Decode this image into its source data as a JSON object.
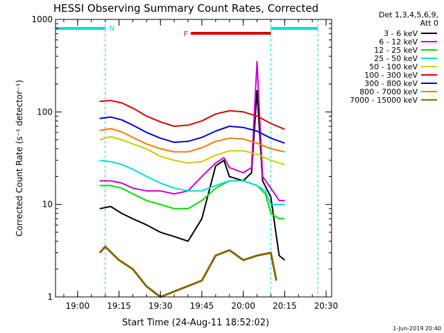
{
  "chart_data": {
    "type": "line",
    "title": "HESSI Observing Summary Count Rates, Corrected",
    "xlabel": "Start Time (24-Aug-11 18:52:02)",
    "ylabel": "Corrected Count Rate (s⁻¹ detector⁻¹)",
    "y_scale": "log",
    "ylim": [
      1,
      1000
    ],
    "xlim": [
      "18:52",
      "20:32"
    ],
    "x_ticks": [
      "19:00",
      "19:15",
      "19:30",
      "19:45",
      "20:00",
      "20:15",
      "20:30"
    ],
    "y_ticks": [
      "1",
      "10",
      "100",
      "1000"
    ],
    "legend_header": [
      "Det 1,3,4,5,6,9,",
      "Att 0"
    ],
    "legend_position": "right",
    "date_stamp": "1-Jun-2019 20:40",
    "series": [
      {
        "name": "3 - 6 keV",
        "color": "#000000",
        "points": [
          [
            "19:08",
            9
          ],
          [
            "19:12",
            9.5
          ],
          [
            "19:16",
            8
          ],
          [
            "19:20",
            7
          ],
          [
            "19:25",
            6
          ],
          [
            "19:30",
            5
          ],
          [
            "19:35",
            4.5
          ],
          [
            "19:40",
            4
          ],
          [
            "19:45",
            7
          ],
          [
            "19:50",
            26
          ],
          [
            "19:53",
            30
          ],
          [
            "19:55",
            20
          ],
          [
            "20:00",
            18
          ],
          [
            "20:03",
            22
          ],
          [
            "20:05",
            170
          ],
          [
            "20:07",
            18
          ],
          [
            "20:10",
            12
          ],
          [
            "20:13",
            2.8
          ],
          [
            "20:15",
            2.5
          ]
        ]
      },
      {
        "name": "6 - 12 keV",
        "color": "#cc00cc",
        "points": [
          [
            "19:08",
            18
          ],
          [
            "19:12",
            18
          ],
          [
            "19:16",
            17
          ],
          [
            "19:20",
            15
          ],
          [
            "19:25",
            14
          ],
          [
            "19:30",
            14
          ],
          [
            "19:35",
            13
          ],
          [
            "19:40",
            14
          ],
          [
            "19:45",
            20
          ],
          [
            "19:50",
            28
          ],
          [
            "19:53",
            32
          ],
          [
            "19:55",
            25
          ],
          [
            "20:00",
            22
          ],
          [
            "20:03",
            25
          ],
          [
            "20:05",
            350
          ],
          [
            "20:07",
            20
          ],
          [
            "20:10",
            15
          ],
          [
            "20:13",
            11
          ],
          [
            "20:15",
            11
          ]
        ]
      },
      {
        "name": "12 - 25 keV",
        "color": "#00dd00",
        "points": [
          [
            "19:08",
            16
          ],
          [
            "19:12",
            16
          ],
          [
            "19:16",
            15
          ],
          [
            "19:20",
            13
          ],
          [
            "19:25",
            11
          ],
          [
            "19:30",
            10
          ],
          [
            "19:35",
            9
          ],
          [
            "19:40",
            9
          ],
          [
            "19:45",
            11
          ],
          [
            "19:50",
            15
          ],
          [
            "19:55",
            18
          ],
          [
            "20:00",
            18
          ],
          [
            "20:05",
            16
          ],
          [
            "20:08",
            13
          ],
          [
            "20:10",
            8
          ],
          [
            "20:13",
            7
          ],
          [
            "20:15",
            7
          ]
        ]
      },
      {
        "name": "25 - 50 keV",
        "color": "#00dddd",
        "points": [
          [
            "19:08",
            30
          ],
          [
            "19:12",
            29
          ],
          [
            "19:16",
            27
          ],
          [
            "19:20",
            24
          ],
          [
            "19:25",
            20
          ],
          [
            "19:30",
            17
          ],
          [
            "19:35",
            15
          ],
          [
            "19:40",
            14
          ],
          [
            "19:45",
            14
          ],
          [
            "19:50",
            16
          ],
          [
            "19:55",
            18
          ],
          [
            "20:00",
            18
          ],
          [
            "20:05",
            16
          ],
          [
            "20:08",
            14
          ],
          [
            "20:10",
            10
          ],
          [
            "20:13",
            10
          ],
          [
            "20:15",
            10
          ]
        ]
      },
      {
        "name": "50 - 100 keV",
        "color": "#cccc00",
        "points": [
          [
            "19:08",
            50
          ],
          [
            "19:12",
            54
          ],
          [
            "19:16",
            50
          ],
          [
            "19:20",
            45
          ],
          [
            "19:25",
            40
          ],
          [
            "19:30",
            33
          ],
          [
            "19:35",
            30
          ],
          [
            "19:40",
            28
          ],
          [
            "19:45",
            29
          ],
          [
            "19:50",
            34
          ],
          [
            "19:55",
            38
          ],
          [
            "20:00",
            38
          ],
          [
            "20:05",
            35
          ],
          [
            "20:10",
            30
          ],
          [
            "20:15",
            27
          ]
        ]
      },
      {
        "name": "100 - 300 keV",
        "color": "#dd0000",
        "points": [
          [
            "19:08",
            130
          ],
          [
            "19:12",
            133
          ],
          [
            "19:16",
            125
          ],
          [
            "19:20",
            110
          ],
          [
            "19:25",
            90
          ],
          [
            "19:30",
            78
          ],
          [
            "19:35",
            70
          ],
          [
            "19:40",
            72
          ],
          [
            "19:45",
            80
          ],
          [
            "19:50",
            95
          ],
          [
            "19:55",
            103
          ],
          [
            "20:00",
            100
          ],
          [
            "20:05",
            90
          ],
          [
            "20:10",
            75
          ],
          [
            "20:15",
            65
          ]
        ]
      },
      {
        "name": "300 - 800 keV",
        "color": "#0000dd",
        "points": [
          [
            "19:08",
            85
          ],
          [
            "19:12",
            88
          ],
          [
            "19:16",
            82
          ],
          [
            "19:20",
            72
          ],
          [
            "19:25",
            60
          ],
          [
            "19:30",
            52
          ],
          [
            "19:35",
            47
          ],
          [
            "19:40",
            48
          ],
          [
            "19:45",
            53
          ],
          [
            "19:50",
            62
          ],
          [
            "19:55",
            70
          ],
          [
            "20:00",
            68
          ],
          [
            "20:05",
            62
          ],
          [
            "20:10",
            52
          ],
          [
            "20:15",
            46
          ]
        ]
      },
      {
        "name": "800 - 7000 keV",
        "color": "#ff7700",
        "points": [
          [
            "19:08",
            63
          ],
          [
            "19:12",
            66
          ],
          [
            "19:16",
            61
          ],
          [
            "19:20",
            53
          ],
          [
            "19:25",
            45
          ],
          [
            "19:30",
            40
          ],
          [
            "19:35",
            37
          ],
          [
            "19:40",
            37
          ],
          [
            "19:45",
            41
          ],
          [
            "19:50",
            48
          ],
          [
            "19:55",
            52
          ],
          [
            "20:00",
            51
          ],
          [
            "20:05",
            46
          ],
          [
            "20:10",
            40
          ],
          [
            "20:15",
            37
          ]
        ]
      },
      {
        "name": "7000 - 15000 keV",
        "color": "#886600",
        "points": [
          [
            "19:08",
            3
          ],
          [
            "19:10",
            3.5
          ],
          [
            "19:15",
            2.5
          ],
          [
            "19:20",
            2
          ],
          [
            "19:25",
            1.3
          ],
          [
            "19:30",
            1
          ],
          [
            "19:45",
            1.5
          ],
          [
            "19:50",
            2.8
          ],
          [
            "19:55",
            3.2
          ],
          [
            "20:00",
            2.5
          ],
          [
            "20:05",
            2.8
          ],
          [
            "20:10",
            3
          ],
          [
            "20:12",
            1.5
          ]
        ]
      }
    ],
    "annotations": [
      {
        "label": "N",
        "color": "#00dddd",
        "at": "19:10",
        "bars": [
          [
            "18:52",
            "19:10"
          ],
          [
            "20:10",
            "20:27"
          ]
        ],
        "lines": [
          "19:10",
          "20:10",
          "20:27"
        ]
      },
      {
        "label": "F",
        "color": "#dd0000",
        "bar": [
          "19:41",
          "20:10"
        ]
      }
    ]
  }
}
